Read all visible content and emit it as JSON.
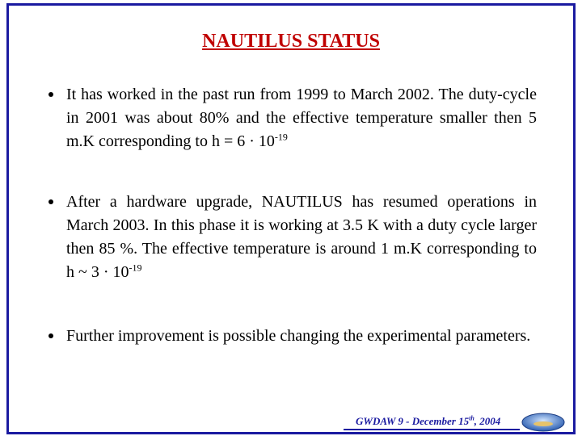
{
  "header": {
    "title": "NAUTILUS  STATUS"
  },
  "bullets": [
    {
      "text": "It has worked in the past run from 1999 to March 2002. The duty-cycle in 2001 was about 80% and the effective temperature smaller then 5 m.K corresponding to h = 6 · 10",
      "sup": "-19"
    },
    {
      "text": "After a hardware upgrade, NAUTILUS has resumed operations in  March 2003. In this phase it is working at 3.5 K with a duty cycle larger then 85 %. The effective temperature is around 1 m.K corresponding to h ~ 3 · 10",
      "sup": "-19"
    },
    {
      "text": "Further improvement is possible changing the experimental parameters."
    }
  ],
  "footer": {
    "text": "GWDAW  9 - December 15",
    "sup": "th",
    "tail": ", 2004"
  }
}
